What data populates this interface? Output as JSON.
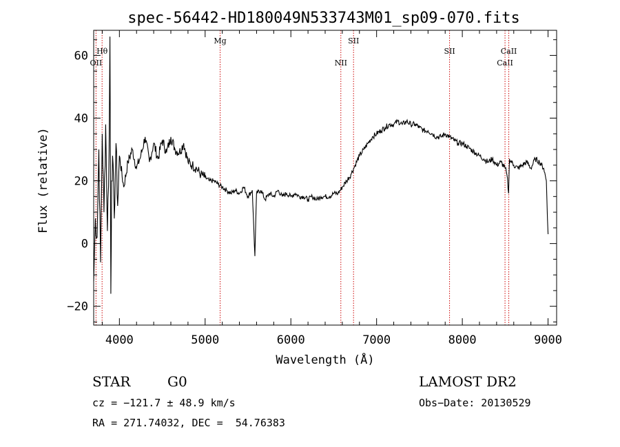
{
  "chart_data": {
    "type": "line",
    "title": "spec-56442-HD180049N533743M01_sp09-070.fits",
    "xlabel": "Wavelength (Å)",
    "ylabel": "Flux (relative)",
    "xlim": [
      3700,
      9100
    ],
    "ylim": [
      -26,
      68
    ],
    "x_ticks": [
      4000,
      5000,
      6000,
      7000,
      8000,
      9000
    ],
    "y_ticks": [
      -20,
      0,
      20,
      40,
      60
    ],
    "x_minor_step": 200,
    "y_minor_step": 5,
    "grid": false,
    "series": [
      {
        "color": "#000000",
        "x": [
          3700,
          3720,
          3740,
          3760,
          3780,
          3800,
          3820,
          3840,
          3860,
          3880,
          3890,
          3900,
          3910,
          3920,
          3940,
          3960,
          3980,
          4000,
          4050,
          4100,
          4150,
          4200,
          4250,
          4300,
          4350,
          4400,
          4450,
          4500,
          4550,
          4600,
          4650,
          4700,
          4750,
          4800,
          4850,
          4900,
          4950,
          5000,
          5050,
          5100,
          5150,
          5200,
          5250,
          5300,
          5350,
          5400,
          5450,
          5500,
          5550,
          5580,
          5600,
          5650,
          5700,
          5750,
          5800,
          5850,
          5900,
          5950,
          6000,
          6050,
          6100,
          6150,
          6200,
          6250,
          6300,
          6350,
          6400,
          6450,
          6500,
          6550,
          6600,
          6650,
          6700,
          6750,
          6800,
          6850,
          6900,
          6950,
          7000,
          7050,
          7100,
          7150,
          7200,
          7250,
          7300,
          7350,
          7400,
          7450,
          7500,
          7550,
          7600,
          7650,
          7700,
          7750,
          7800,
          7850,
          7900,
          7950,
          8000,
          8050,
          8100,
          8150,
          8200,
          8250,
          8300,
          8350,
          8400,
          8450,
          8500,
          8520,
          8540,
          8550,
          8600,
          8650,
          8700,
          8750,
          8800,
          8850,
          8900,
          8950,
          8980,
          9000
        ],
        "y": [
          -12,
          8,
          2,
          30,
          -6,
          35,
          10,
          38,
          4,
          30,
          66,
          -16,
          20,
          28,
          8,
          32,
          12,
          28,
          18,
          26,
          30,
          24,
          28,
          34,
          26,
          32,
          27,
          33,
          29,
          34,
          30,
          29,
          32,
          26,
          25,
          24,
          22,
          21,
          20,
          20,
          19,
          18,
          17,
          16,
          17,
          16,
          18,
          15,
          17,
          -4,
          16,
          17,
          14,
          16,
          15,
          17,
          15,
          16,
          15,
          16,
          15,
          15,
          14,
          15,
          14,
          15,
          15,
          15,
          16,
          16,
          18,
          20,
          22,
          25,
          28,
          30,
          32,
          34,
          35,
          36,
          37,
          38,
          38,
          39,
          38,
          39,
          38,
          38,
          37,
          36,
          36,
          35,
          34,
          34,
          35,
          34,
          33,
          32,
          32,
          31,
          30,
          29,
          28,
          27,
          26,
          27,
          25,
          26,
          24,
          22,
          16,
          27,
          25,
          24,
          25,
          26,
          24,
          27,
          26,
          24,
          20,
          3
        ]
      }
    ],
    "lines": [
      {
        "label": "OII",
        "x": 3727,
        "row": "low"
      },
      {
        "label": "Hθ",
        "x": 3798,
        "row": "high"
      },
      {
        "label": "Mg",
        "x": 5175,
        "row": "top"
      },
      {
        "label": "NII",
        "x": 6583,
        "row": "low"
      },
      {
        "label": "SII",
        "x": 6731,
        "row": "top"
      },
      {
        "label": "SII",
        "x": 7851,
        "row": "high"
      },
      {
        "label": "CaII",
        "x": 8498,
        "row": "low"
      },
      {
        "label": "CaII",
        "x": 8542,
        "row": "high"
      }
    ],
    "line_color": "#cc0000"
  },
  "info": {
    "class_label": "STAR",
    "subclass_label": "G0",
    "survey": "LAMOST DR2",
    "cz": "cz = −121.7 ± 48.9 km/s",
    "obs_date": "Obs−Date: 20130529",
    "radec": "RA = 271.74032, DEC =  54.76383"
  }
}
